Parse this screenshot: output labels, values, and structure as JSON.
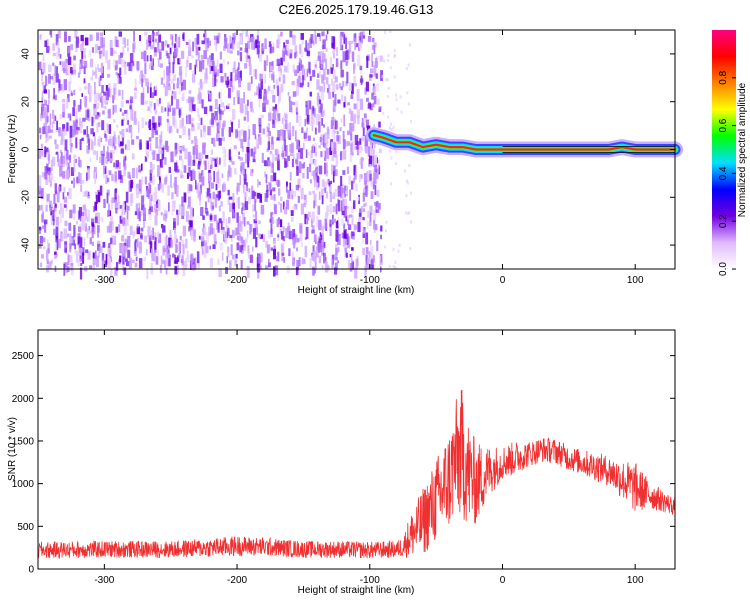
{
  "title": "C2E6.2025.179.19.46.G13",
  "chart_data": [
    {
      "type": "heatmap",
      "xlabel": "Height of straight line (km)",
      "ylabel": "Frequency (Hz)",
      "xlim": [
        -350,
        130
      ],
      "ylim": [
        -50,
        50
      ],
      "xticks": [
        -300,
        -200,
        -100,
        0,
        100
      ],
      "yticks": [
        -40,
        -20,
        0,
        20,
        40
      ],
      "noise_region_x": [
        -350,
        -92
      ],
      "signal_trace": {
        "x": [
          -97,
          -90,
          -80,
          -70,
          -60,
          -50,
          -40,
          -30,
          -20,
          -10,
          0,
          10,
          20,
          40,
          60,
          70,
          80,
          90,
          100,
          110,
          120,
          130
        ],
        "y": [
          6,
          5,
          3,
          3,
          1,
          2,
          1,
          1,
          0,
          0,
          0,
          0,
          0,
          0,
          0,
          0,
          0,
          1,
          0,
          0,
          0,
          0
        ]
      },
      "colorbar": {
        "label": "Normalized spectral amplitude",
        "range": [
          0,
          1
        ],
        "ticks": [
          0.0,
          0.2,
          0.4,
          0.6,
          0.8
        ],
        "colors": [
          "#ffffff",
          "#e0b8ff",
          "#7000e0",
          "#0000ff",
          "#00e0ff",
          "#00ff00",
          "#ffff00",
          "#ff8000",
          "#ff0000",
          "#ff0080"
        ]
      }
    },
    {
      "type": "line",
      "xlabel": "Height of straight line (km)",
      "ylabel": "SNR (10 * v/v)",
      "xlim": [
        -350,
        130
      ],
      "ylim": [
        0,
        2800
      ],
      "xticks": [
        -300,
        -200,
        -100,
        0,
        100
      ],
      "yticks": [
        0,
        500,
        1000,
        1500,
        2000,
        2500
      ],
      "series": [
        {
          "color": "#f03030",
          "x": [
            -350,
            -300,
            -250,
            -220,
            -200,
            -180,
            -150,
            -120,
            -100,
            -80,
            -75,
            -70,
            -60,
            -50,
            -40,
            -35,
            -30,
            -25,
            -20,
            -10,
            0,
            10,
            20,
            30,
            40,
            50,
            60,
            70,
            80,
            90,
            100,
            110,
            120,
            130
          ],
          "y": [
            220,
            230,
            230,
            250,
            270,
            260,
            230,
            230,
            220,
            230,
            260,
            380,
            550,
            800,
            1050,
            1300,
            1350,
            1100,
            1000,
            1150,
            1250,
            1300,
            1350,
            1400,
            1380,
            1300,
            1250,
            1200,
            1150,
            1050,
            950,
            880,
            800,
            730
          ],
          "noise_amplitude": [
            100,
            100,
            100,
            110,
            120,
            110,
            100,
            100,
            100,
            100,
            120,
            250,
            400,
            500,
            600,
            700,
            800,
            600,
            500,
            300,
            200,
            200,
            150,
            150,
            150,
            150,
            150,
            170,
            180,
            230,
            300,
            180,
            130,
            110
          ]
        }
      ]
    }
  ]
}
